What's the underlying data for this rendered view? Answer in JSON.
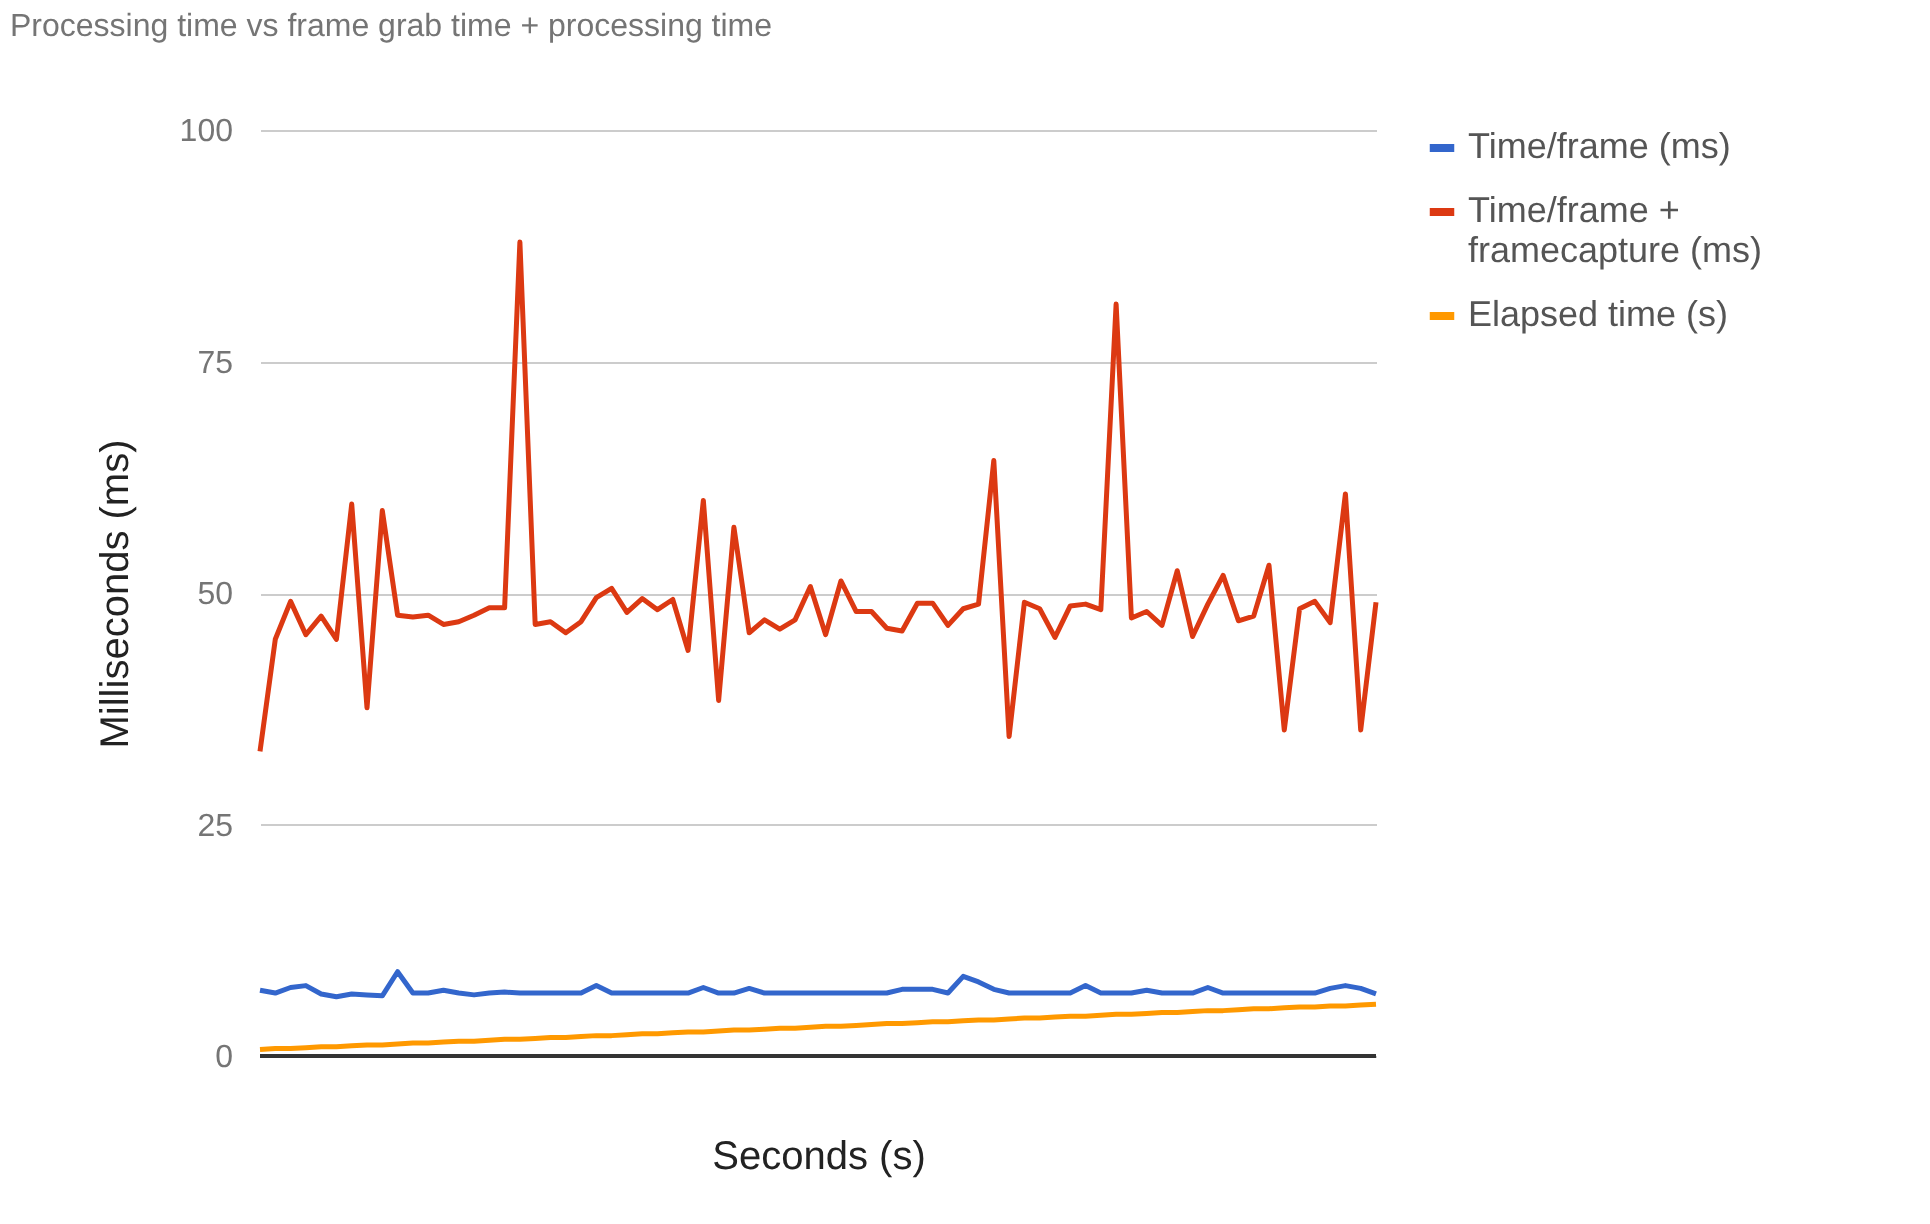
{
  "chart_data": {
    "type": "line",
    "title": "Processing time vs frame grab time + processing time",
    "xlabel": "Seconds (s)",
    "ylabel": "Milliseconds (ms)",
    "categories": [
      null,
      null,
      null,
      null,
      null,
      null,
      null,
      null,
      null,
      null,
      null,
      null,
      null,
      null,
      null,
      null,
      null,
      null,
      null,
      null,
      null,
      null,
      null,
      null,
      null,
      null,
      null,
      null,
      null,
      null,
      null,
      null,
      null,
      null,
      null,
      null,
      null,
      null,
      null,
      null,
      null,
      null,
      null,
      null,
      null,
      null,
      null,
      null,
      null,
      null,
      null,
      null,
      null,
      null,
      null,
      null,
      null,
      null,
      null,
      null,
      null,
      null,
      null,
      null,
      null,
      null,
      null,
      null,
      null,
      null,
      null,
      null,
      null,
      null
    ],
    "series": [
      {
        "name": "Time/frame (ms)",
        "color": "#3366cc",
        "values": [
          7.1,
          6.8,
          7.4,
          7.6,
          6.7,
          6.4,
          6.7,
          6.6,
          6.5,
          9.1,
          6.8,
          6.8,
          7.1,
          6.8,
          6.6,
          6.8,
          6.9,
          6.8,
          6.8,
          6.8,
          6.8,
          6.8,
          7.6,
          6.8,
          6.8,
          6.8,
          6.8,
          6.8,
          6.8,
          7.4,
          6.8,
          6.8,
          7.3,
          6.8,
          6.8,
          6.8,
          6.8,
          6.8,
          6.8,
          6.8,
          6.8,
          6.8,
          7.2,
          7.2,
          7.2,
          6.8,
          8.6,
          8.0,
          7.2,
          6.8,
          6.8,
          6.8,
          6.8,
          6.8,
          7.6,
          6.8,
          6.8,
          6.8,
          7.1,
          6.8,
          6.8,
          6.8,
          7.4,
          6.8,
          6.8,
          6.8,
          6.8,
          6.8,
          6.8,
          6.8,
          7.3,
          7.6,
          7.3,
          6.7
        ]
      },
      {
        "name": "Time/frame + framecapture (ms)",
        "color": "#dc3912",
        "values": [
          32.9,
          45,
          49.1,
          45.5,
          47.5,
          45,
          59.6,
          37.6,
          58.9,
          47.6,
          47.4,
          47.6,
          46.6,
          46.9,
          47.6,
          48.4,
          48.4,
          87.9,
          46.6,
          46.9,
          45.7,
          46.9,
          49.5,
          50.5,
          47.9,
          49.4,
          48.2,
          49.3,
          43.8,
          60,
          38.4,
          57.1,
          45.7,
          47.1,
          46.1,
          47.1,
          50.7,
          45.5,
          51.3,
          48,
          48,
          46.2,
          45.9,
          48.9,
          48.9,
          46.5,
          48.3,
          48.8,
          64.3,
          34.5,
          49,
          48.3,
          45.2,
          48.6,
          48.8,
          48.2,
          81.2,
          47.3,
          48,
          46.5,
          52.4,
          45.3,
          48.8,
          51.9,
          47,
          47.5,
          53,
          35.2,
          48.3,
          49.1,
          46.8,
          60.7,
          35.2,
          49
        ]
      },
      {
        "name": "Elapsed time (s)",
        "color": "#ff9900",
        "values": [
          0.7,
          0.8,
          0.8,
          0.9,
          1.0,
          1.0,
          1.1,
          1.2,
          1.2,
          1.3,
          1.4,
          1.4,
          1.5,
          1.6,
          1.6,
          1.7,
          1.8,
          1.8,
          1.9,
          2.0,
          2.0,
          2.1,
          2.2,
          2.2,
          2.3,
          2.4,
          2.4,
          2.5,
          2.6,
          2.6,
          2.7,
          2.8,
          2.8,
          2.9,
          3.0,
          3.0,
          3.1,
          3.2,
          3.2,
          3.3,
          3.4,
          3.5,
          3.5,
          3.6,
          3.7,
          3.7,
          3.8,
          3.9,
          3.9,
          4.0,
          4.1,
          4.1,
          4.2,
          4.3,
          4.3,
          4.4,
          4.5,
          4.5,
          4.6,
          4.7,
          4.7,
          4.8,
          4.9,
          4.9,
          5.0,
          5.1,
          5.1,
          5.2,
          5.3,
          5.3,
          5.4,
          5.4,
          5.5,
          5.6
        ]
      }
    ],
    "ylim": [
      0,
      100
    ],
    "yticks": [
      0,
      25,
      50,
      75,
      100
    ],
    "grid": "y",
    "legend": "top right",
    "tick_labels": "y",
    "marker": "none",
    "line_style": "solid"
  }
}
